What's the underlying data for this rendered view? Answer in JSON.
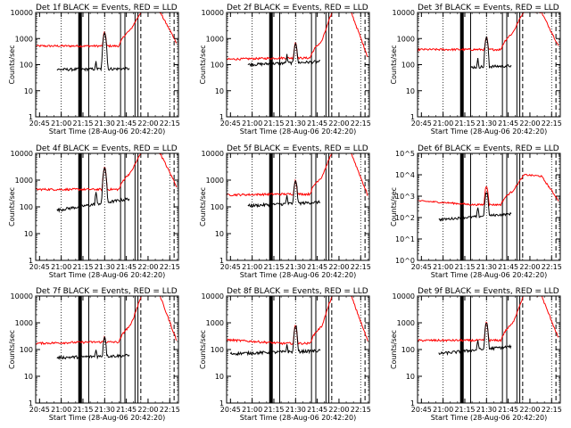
{
  "chart_data": [
    {
      "type": "line",
      "title": "Det 1f BLACK = Events, RED = LLD",
      "xlabel": "Start Time (28-Aug-06 20:42:20)",
      "ylabel": "Counts/sec",
      "yscale": "log",
      "ylim": [
        1,
        10000
      ],
      "y_ticks": [
        "1",
        "10",
        "100",
        "1000",
        "10000"
      ],
      "x_ticks": [
        "20:45",
        "21:00",
        "21:15",
        "21:30",
        "21:45",
        "22:00",
        "22:15"
      ],
      "xlim": [
        "20:42:20",
        "22:21"
      ],
      "black_from": "20:57",
      "black_base": 65,
      "black_pre": 70,
      "red_base": 520,
      "red_pre": 520,
      "spike": 1800,
      "spike_red": 1800,
      "red_max": 13000,
      "red_end": 650,
      "series": [
        {
          "name": "BLACK",
          "color": "#000000"
        },
        {
          "name": "RED",
          "color": "#ff0000"
        }
      ]
    },
    {
      "type": "line",
      "title": "Det 2f BLACK = Events, RED = LLD",
      "xlabel": "Start Time (28-Aug-06 20:42:20)",
      "ylabel": "Counts/sec",
      "yscale": "log",
      "ylim": [
        1,
        10000
      ],
      "y_ticks": [
        "1",
        "10",
        "100",
        "1000",
        "10000"
      ],
      "x_ticks": [
        "20:45",
        "21:00",
        "21:15",
        "21:30",
        "21:45",
        "22:00",
        "22:15"
      ],
      "xlim": [
        "20:42:20",
        "22:21"
      ],
      "black_from": "20:57",
      "black_base": 100,
      "black_pre": 130,
      "red_base": 160,
      "red_pre": 180,
      "spike": 700,
      "spike_red": 700,
      "red_max": 14000,
      "red_end": 190,
      "series": [
        {
          "name": "BLACK",
          "color": "#000000"
        },
        {
          "name": "RED",
          "color": "#ff0000"
        }
      ]
    },
    {
      "type": "line",
      "title": "Det 3f BLACK = Events, RED = LLD",
      "xlabel": "Start Time (28-Aug-06 20:42:20)",
      "ylabel": "Counts/sec",
      "yscale": "log",
      "ylim": [
        1,
        10000
      ],
      "y_ticks": [
        "1",
        "10",
        "100",
        "1000",
        "10000"
      ],
      "x_ticks": [
        "20:45",
        "21:00",
        "21:15",
        "21:30",
        "21:45",
        "22:00",
        "22:15"
      ],
      "xlim": [
        "20:42:20",
        "22:21"
      ],
      "black_from": "21:19",
      "black_base": 80,
      "black_pre": 90,
      "red_base": 380,
      "red_pre": 380,
      "spike": 1100,
      "spike_red": 1100,
      "red_max": 12000,
      "red_end": 500,
      "series": [
        {
          "name": "BLACK",
          "color": "#000000"
        },
        {
          "name": "RED",
          "color": "#ff0000"
        }
      ]
    },
    {
      "type": "line",
      "title": "Det 4f BLACK = Events, RED = LLD",
      "xlabel": "Start Time (28-Aug-06 20:42:20)",
      "ylabel": "Counts/sec",
      "yscale": "log",
      "ylim": [
        1,
        10000
      ],
      "y_ticks": [
        "1",
        "10",
        "100",
        "1000",
        "10000"
      ],
      "x_ticks": [
        "20:45",
        "21:00",
        "21:15",
        "21:30",
        "21:45",
        "22:00",
        "22:15"
      ],
      "xlim": [
        "20:42:20",
        "22:21"
      ],
      "black_from": "20:57",
      "black_base": 75,
      "black_pre": 200,
      "red_base": 450,
      "red_pre": 450,
      "spike": 3000,
      "spike_red": 3000,
      "red_max": 13000,
      "red_end": 550,
      "series": [
        {
          "name": "BLACK",
          "color": "#000000"
        },
        {
          "name": "RED",
          "color": "#ff0000"
        }
      ]
    },
    {
      "type": "line",
      "title": "Det 5f BLACK = Events, RED = LLD",
      "xlabel": "Start Time (28-Aug-06 20:42:20)",
      "ylabel": "Counts/sec",
      "yscale": "log",
      "ylim": [
        1,
        10000
      ],
      "y_ticks": [
        "1",
        "10",
        "100",
        "1000",
        "10000"
      ],
      "x_ticks": [
        "20:45",
        "21:00",
        "21:15",
        "21:30",
        "21:45",
        "22:00",
        "22:15"
      ],
      "xlim": [
        "20:42:20",
        "22:21"
      ],
      "black_from": "20:57",
      "black_base": 110,
      "black_pre": 150,
      "red_base": 280,
      "red_pre": 300,
      "spike": 1000,
      "spike_red": 1000,
      "red_max": 14000,
      "red_end": 260,
      "series": [
        {
          "name": "BLACK",
          "color": "#000000"
        },
        {
          "name": "RED",
          "color": "#ff0000"
        }
      ]
    },
    {
      "type": "line",
      "title": "Det 6f BLACK = Events, RED = LLD",
      "xlabel": "Start Time (28-Aug-06 20:42:20)",
      "ylabel": "Counts/sec",
      "yscale": "log",
      "ylim": [
        1,
        100000
      ],
      "y_ticks": [
        "10^0",
        "10^1",
        "10^2",
        "10^3",
        "10^4",
        "10^5"
      ],
      "x_ticks": [
        "20:45",
        "21:00",
        "21:15",
        "21:30",
        "21:45",
        "22:00",
        "22:15"
      ],
      "xlim": [
        "20:42:20",
        "22:21"
      ],
      "black_from": "20:57",
      "black_base": 80,
      "black_pre": 150,
      "red_base": 600,
      "red_pre": 400,
      "spike": 1500,
      "spike_red": 3000,
      "red_max": 10000,
      "red_end": 600,
      "series": [
        {
          "name": "BLACK",
          "color": "#000000"
        },
        {
          "name": "RED",
          "color": "#ff0000"
        }
      ]
    },
    {
      "type": "line",
      "title": "Det 7f BLACK = Events, RED = LLD",
      "xlabel": "Start Time (28-Aug-06 20:42:20)",
      "ylabel": "Counts/sec",
      "yscale": "log",
      "ylim": [
        1,
        10000
      ],
      "y_ticks": [
        "1",
        "10",
        "100",
        "1000",
        "10000"
      ],
      "x_ticks": [
        "20:45",
        "21:00",
        "21:15",
        "21:30",
        "21:45",
        "22:00",
        "22:15"
      ],
      "xlim": [
        "20:42:20",
        "22:21"
      ],
      "black_from": "20:57",
      "black_base": 50,
      "black_pre": 60,
      "red_base": 170,
      "red_pre": 190,
      "spike": 300,
      "spike_red": 300,
      "red_max": 13000,
      "red_end": 200,
      "series": [
        {
          "name": "BLACK",
          "color": "#000000"
        },
        {
          "name": "RED",
          "color": "#ff0000"
        }
      ]
    },
    {
      "type": "line",
      "title": "Det 8f BLACK = Events, RED = LLD",
      "xlabel": "Start Time (28-Aug-06 20:42:20)",
      "ylabel": "Counts/sec",
      "yscale": "log",
      "ylim": [
        1,
        10000
      ],
      "y_ticks": [
        "1",
        "10",
        "100",
        "1000",
        "10000"
      ],
      "x_ticks": [
        "20:45",
        "21:00",
        "21:15",
        "21:30",
        "21:45",
        "22:00",
        "22:15"
      ],
      "xlim": [
        "20:42:20",
        "22:21"
      ],
      "black_from": "20:45",
      "black_base": 70,
      "black_pre": 90,
      "red_base": 230,
      "red_pre": 170,
      "spike": 800,
      "spike_red": 800,
      "red_max": 14000,
      "red_end": 200,
      "series": [
        {
          "name": "BLACK",
          "color": "#000000"
        },
        {
          "name": "RED",
          "color": "#ff0000"
        }
      ]
    },
    {
      "type": "line",
      "title": "Det 9f BLACK = Events, RED = LLD",
      "xlabel": "Start Time (28-Aug-06 20:42:20)",
      "ylabel": "Counts/sec",
      "yscale": "log",
      "ylim": [
        1,
        10000
      ],
      "y_ticks": [
        "1",
        "10",
        "100",
        "1000",
        "10000"
      ],
      "x_ticks": [
        "20:45",
        "21:00",
        "21:15",
        "21:30",
        "21:45",
        "22:00",
        "22:15"
      ],
      "xlim": [
        "20:42:20",
        "22:21"
      ],
      "black_from": "20:57",
      "black_base": 70,
      "black_pre": 130,
      "red_base": 220,
      "red_pre": 220,
      "spike": 1000,
      "spike_red": 1000,
      "red_max": 12000,
      "red_end": 250,
      "series": [
        {
          "name": "BLACK",
          "color": "#000000"
        },
        {
          "name": "RED",
          "color": "#ff0000"
        }
      ]
    }
  ],
  "markers": {
    "dotted": [
      "21:00",
      "21:30",
      "22:15"
    ],
    "thick": "21:13",
    "solid": [
      "21:19",
      "21:41",
      "21:44",
      "21:51",
      "21:53"
    ],
    "dashed": [
      "21:55",
      "22:18"
    ]
  }
}
